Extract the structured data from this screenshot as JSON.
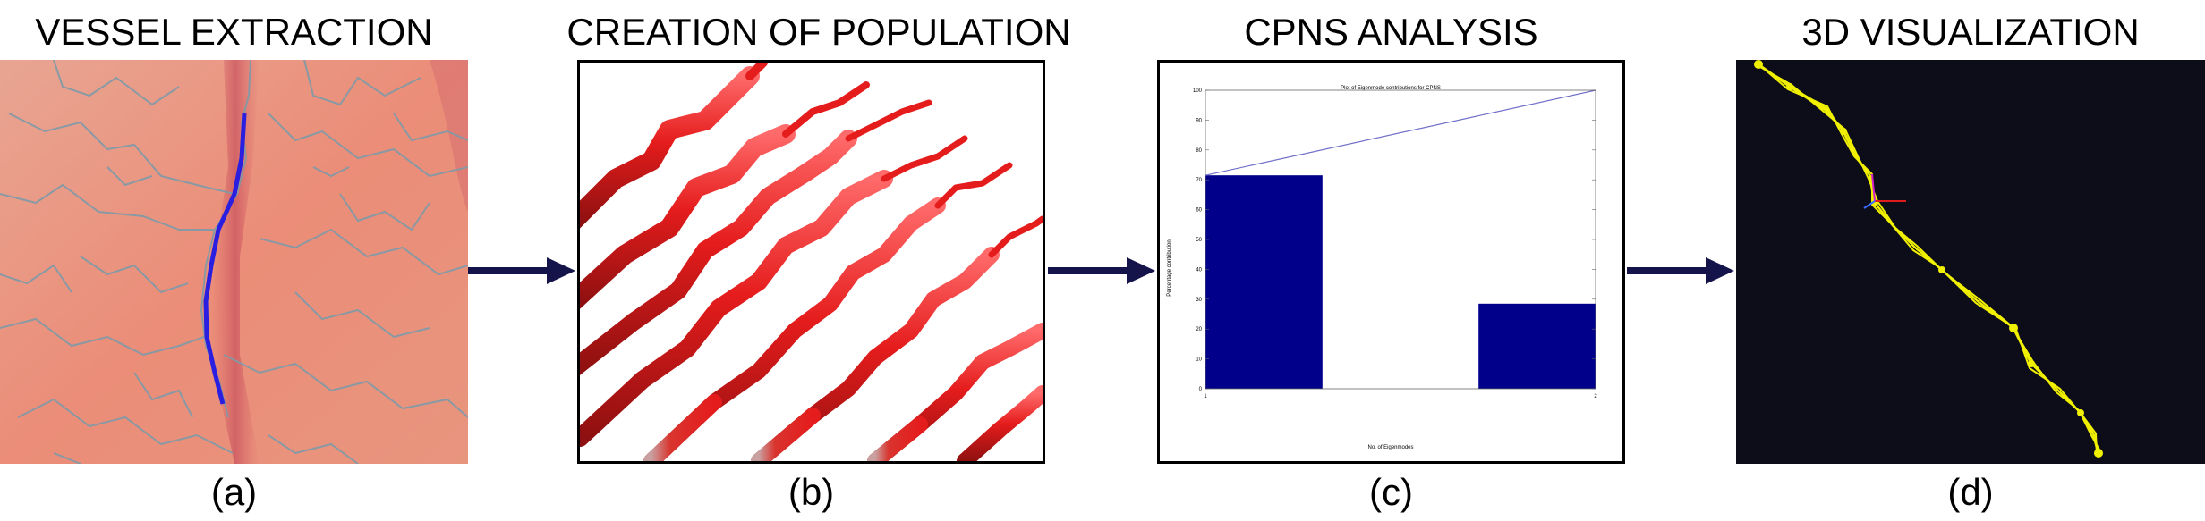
{
  "stages": [
    {
      "title": "VESSEL EXTRACTION",
      "label": "(a)"
    },
    {
      "title": "CREATION OF POPULATION",
      "label": "(b)"
    },
    {
      "title": "CPNS ANALYSIS",
      "label": "(c)"
    },
    {
      "title": "3D VISUALIZATION",
      "label": "(d)"
    }
  ],
  "colors": {
    "arrow": "#14144a",
    "bar": "#00008b",
    "cumulative_line": "#6f6fc9",
    "tube": "#e02020",
    "curve": "#f0f000",
    "viz_background": "#0d0d1a"
  },
  "chart_data": {
    "type": "bar",
    "title": "Plot of Eigenmode contributions for CPNS",
    "xlabel": "No. of Eigenmodes",
    "ylabel": "Percentage contribution",
    "categories": [
      "1",
      "2"
    ],
    "x_ticks": [
      "1",
      "2"
    ],
    "values": [
      71.5,
      28.5
    ],
    "cumulative": [
      71.5,
      100
    ],
    "ylim": [
      0,
      100
    ],
    "y_ticks": [
      "0",
      "10",
      "20",
      "30",
      "40",
      "50",
      "60",
      "70",
      "80",
      "90",
      "100"
    ],
    "grid": false
  }
}
